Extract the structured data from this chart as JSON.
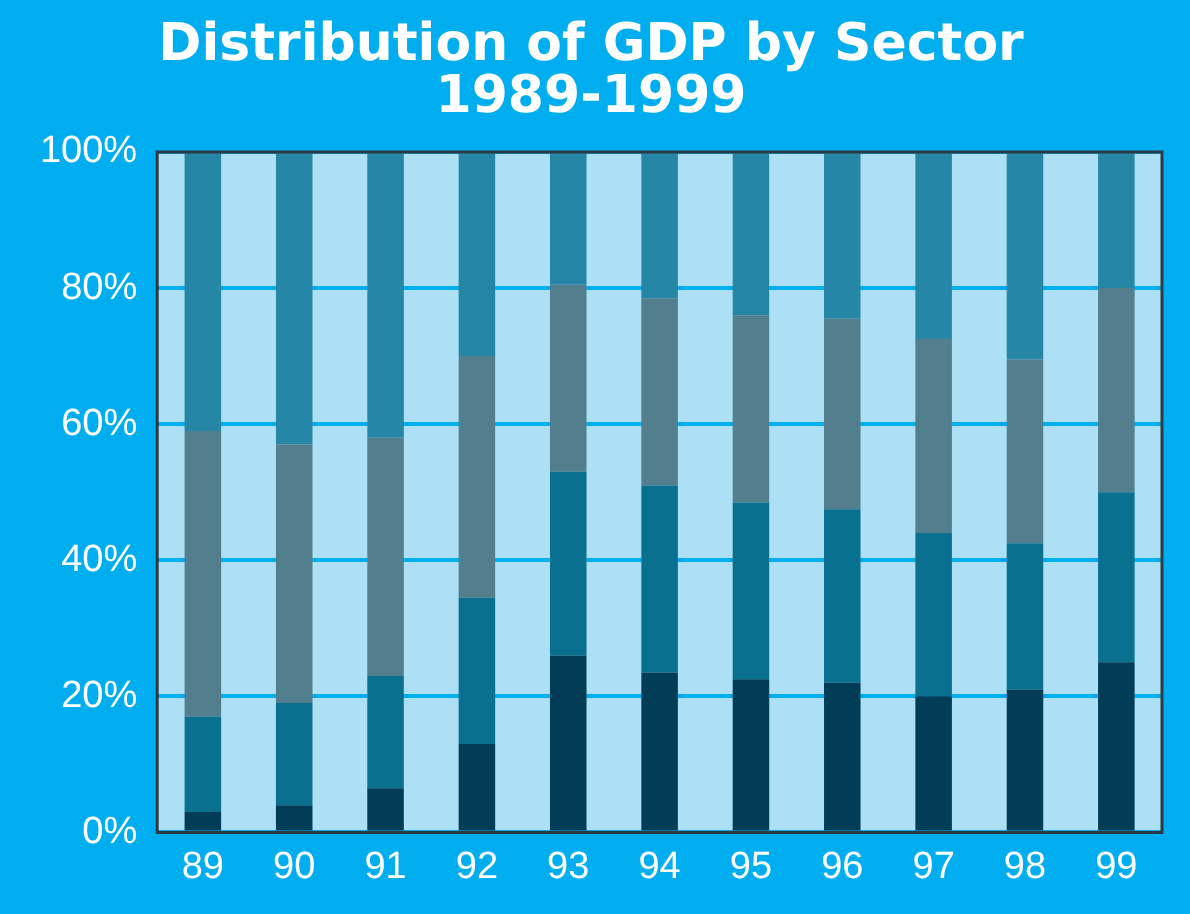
{
  "chart_data": {
    "type": "bar",
    "title": "Distribution of GDP by Sector\n1989-1999",
    "stacked": true,
    "grid": "y",
    "legend": false,
    "categories": [
      "89",
      "90",
      "91",
      "92",
      "93",
      "94",
      "95",
      "96",
      "97",
      "98",
      "99"
    ],
    "series": [
      {
        "color": "#023d57",
        "values": [
          3,
          4,
          6.5,
          13,
          26,
          23.5,
          22.5,
          22,
          20,
          21,
          25
        ]
      },
      {
        "color": "#0a7090",
        "values": [
          14,
          15,
          16.5,
          21.5,
          27,
          27.5,
          26,
          25.5,
          24,
          21.5,
          25
        ]
      },
      {
        "color": "#527e8e",
        "values": [
          42,
          38,
          35,
          35.5,
          27.5,
          27.5,
          27.5,
          28,
          28.5,
          27,
          30
        ]
      },
      {
        "color": "#2686a6",
        "values": [
          41,
          43,
          42,
          30,
          19.5,
          21.5,
          24,
          24.5,
          27.5,
          30.5,
          20
        ]
      }
    ],
    "ylim": [
      0,
      100
    ],
    "yticks": [
      {
        "value": 0,
        "label": "0%"
      },
      {
        "value": 20,
        "label": "20%"
      },
      {
        "value": 40,
        "label": "40%"
      },
      {
        "value": 60,
        "label": "60%"
      },
      {
        "value": 80,
        "label": "80%"
      },
      {
        "value": 100,
        "label": "100%"
      }
    ]
  }
}
